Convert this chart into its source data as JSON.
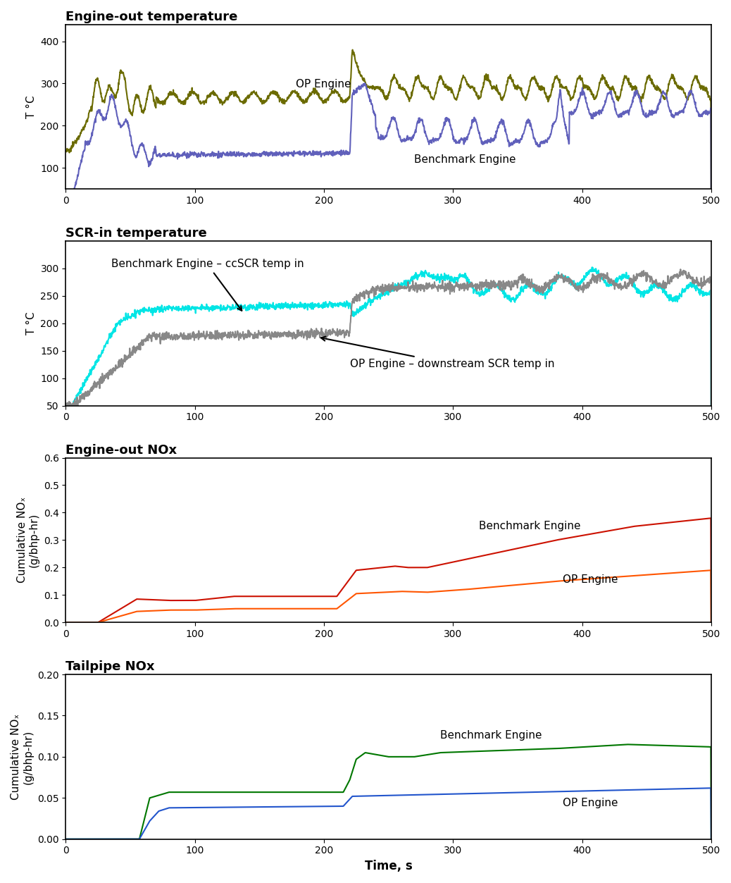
{
  "title1": "Engine-out temperature",
  "title2": "SCR-in temperature",
  "title3": "Engine-out NOx",
  "title4": "Tailpipe NOx",
  "ylabel1": "T °C",
  "ylabel2": "T °C",
  "ylabel3": "Cumulative NOₓ\n(g/bhp-hr)",
  "ylabel4": "Cumulative NOₓ\n(g/bhp-hr)",
  "xlabel": "Time, s",
  "op_color1": "#6b6b00",
  "benchmark_color1": "#6060bb",
  "benchmark_color2": "#00e5e5",
  "op_color2": "#888888",
  "benchmark_color3": "#cc1100",
  "op_color3": "#ff5500",
  "benchmark_color4": "#007700",
  "op_color4": "#2255cc",
  "plot_bg": "#ffffff",
  "title_fontsize": 13,
  "label_fontsize": 11,
  "tick_fontsize": 10,
  "annotation_fontsize": 11
}
